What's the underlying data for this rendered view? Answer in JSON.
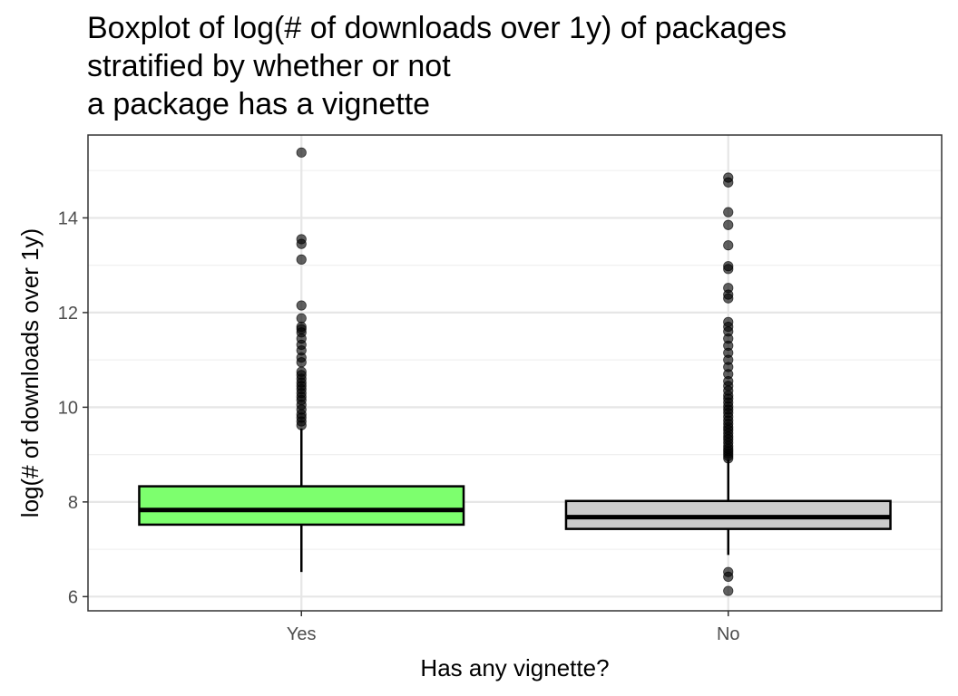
{
  "chart_data": {
    "type": "boxplot",
    "title_lines": [
      "Boxplot of log(# of downloads over 1y) of packages",
      "stratified by whether or not",
      "a package has a vignette"
    ],
    "xlabel": "Has any vignette?",
    "ylabel": "log(# of downloads over 1y)",
    "ylim": [
      5.7,
      15.75
    ],
    "y_ticks": [
      6,
      8,
      10,
      12,
      14
    ],
    "y_tick_labels": [
      "6",
      "8",
      "10",
      "12",
      "14"
    ],
    "y_minor": [
      7,
      9,
      11,
      13,
      15
    ],
    "categories": [
      "Yes",
      "No"
    ],
    "grid": true,
    "boxes": [
      {
        "category": "Yes",
        "fill": "#7dff6e",
        "whisker_low": 6.52,
        "q1": 7.52,
        "median": 7.83,
        "q3": 8.33,
        "whisker_high": 9.55,
        "outliers": [
          9.62,
          9.7,
          9.78,
          9.85,
          9.95,
          10.05,
          10.15,
          10.22,
          10.3,
          10.38,
          10.45,
          10.52,
          10.6,
          10.68,
          10.75,
          10.95,
          11.05,
          11.2,
          11.32,
          11.45,
          11.58,
          11.65,
          11.7,
          11.88,
          12.15,
          13.12,
          13.45,
          13.55,
          15.38
        ]
      },
      {
        "category": "No",
        "fill": "#cccccc",
        "whisker_low": 6.88,
        "q1": 7.43,
        "median": 7.68,
        "q3": 8.02,
        "whisker_high": 8.9,
        "outliers": [
          6.12,
          6.42,
          6.52,
          8.92,
          8.97,
          9.02,
          9.07,
          9.12,
          9.18,
          9.25,
          9.32,
          9.38,
          9.45,
          9.52,
          9.58,
          9.65,
          9.72,
          9.8,
          9.88,
          9.95,
          10.02,
          10.1,
          10.18,
          10.25,
          10.35,
          10.45,
          10.55,
          10.7,
          10.85,
          11.0,
          11.15,
          11.3,
          11.45,
          11.6,
          11.7,
          11.8,
          12.3,
          12.38,
          12.52,
          12.92,
          12.98,
          13.42,
          13.85,
          14.12,
          14.75,
          14.85
        ]
      }
    ]
  }
}
